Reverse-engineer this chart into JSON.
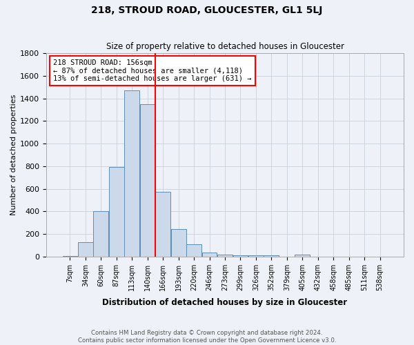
{
  "title1": "218, STROUD ROAD, GLOUCESTER, GL1 5LJ",
  "title2": "Size of property relative to detached houses in Gloucester",
  "xlabel": "Distribution of detached houses by size in Gloucester",
  "ylabel": "Number of detached properties",
  "bar_labels": [
    "7sqm",
    "34sqm",
    "60sqm",
    "87sqm",
    "113sqm",
    "140sqm",
    "166sqm",
    "193sqm",
    "220sqm",
    "246sqm",
    "273sqm",
    "299sqm",
    "326sqm",
    "352sqm",
    "379sqm",
    "405sqm",
    "432sqm",
    "458sqm",
    "485sqm",
    "511sqm",
    "538sqm"
  ],
  "bar_heights": [
    5,
    130,
    400,
    790,
    1470,
    1350,
    570,
    245,
    110,
    35,
    20,
    10,
    10,
    10,
    0,
    20,
    0,
    0,
    0,
    0,
    0
  ],
  "bar_color": "#ccd9ea",
  "bar_edge_color": "#5b8db8",
  "red_line_x": 5.5,
  "ylim": [
    0,
    1800
  ],
  "yticks": [
    0,
    200,
    400,
    600,
    800,
    1000,
    1200,
    1400,
    1600,
    1800
  ],
  "annotation_text": "218 STROUD ROAD: 156sqm\n← 87% of detached houses are smaller (4,118)\n13% of semi-detached houses are larger (631) →",
  "annotation_box_color": "white",
  "annotation_box_edge": "red",
  "grid_color": "#c8d0da",
  "footnote": "Contains HM Land Registry data © Crown copyright and database right 2024.\nContains public sector information licensed under the Open Government Licence v3.0.",
  "background_color": "#eef2f8"
}
